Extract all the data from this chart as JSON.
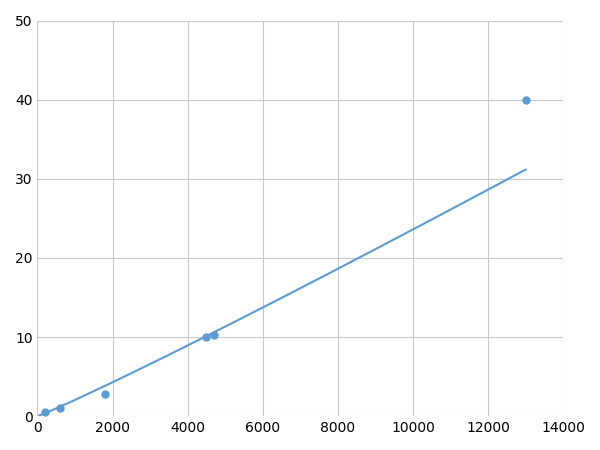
{
  "x_points": [
    200,
    600,
    1800,
    4500,
    4700,
    13000
  ],
  "y_points": [
    0.5,
    1.0,
    2.8,
    10.0,
    10.2,
    40.0
  ],
  "line_color": "#5B9BD5",
  "marker_color": "#5B9BD5",
  "marker_size": 5,
  "linewidth": 1.5,
  "xlim": [
    0,
    14000
  ],
  "ylim": [
    0,
    50
  ],
  "xticks": [
    0,
    2000,
    4000,
    6000,
    8000,
    10000,
    12000,
    14000
  ],
  "yticks": [
    0,
    10,
    20,
    30,
    40,
    50
  ],
  "grid_color": "#C8C8C8",
  "background_color": "#FFFFFF",
  "tick_fontsize": 10,
  "figsize": [
    6.0,
    4.5
  ],
  "dpi": 100
}
